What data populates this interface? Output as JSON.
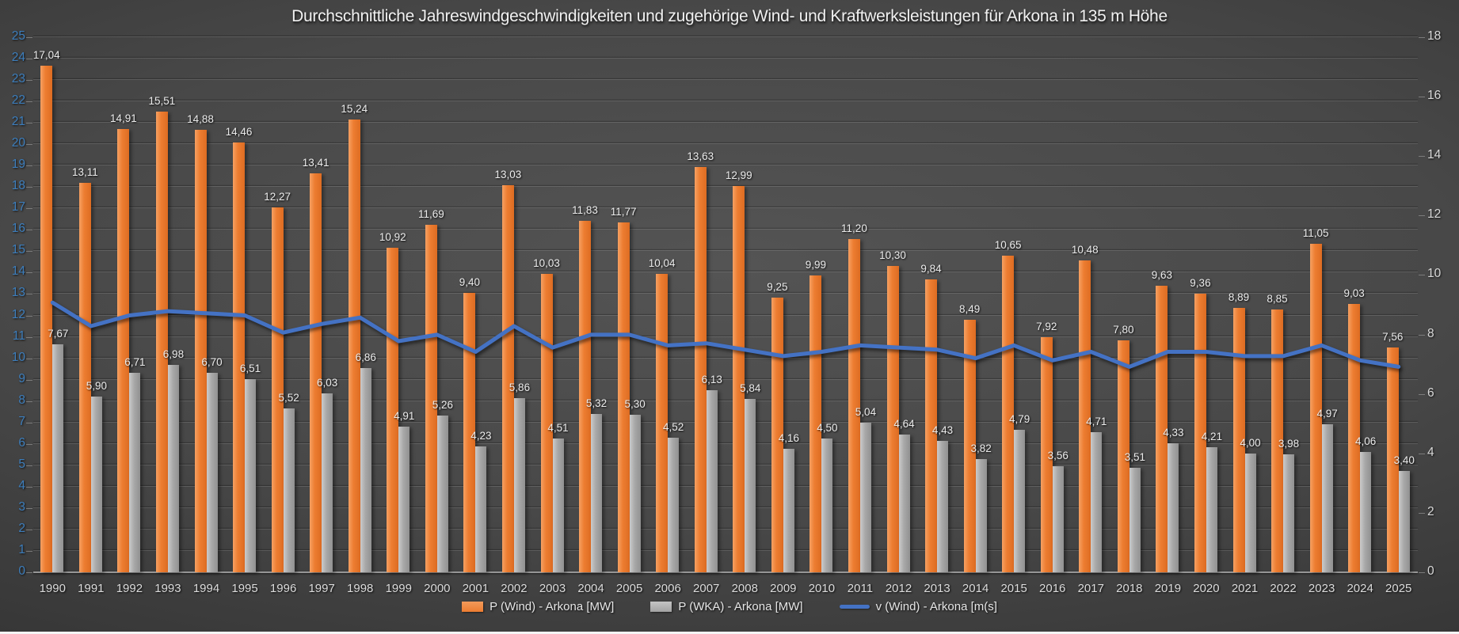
{
  "chart_data": {
    "type": "bar",
    "title": "Durchschnittliche Jahreswindgeschwindigkeiten und zugehörige Wind- und Kraftwerksleistungen für Arkona in 135 m Höhe",
    "categories": [
      "1990",
      "1991",
      "1992",
      "1993",
      "1994",
      "1995",
      "1996",
      "1997",
      "1998",
      "1999",
      "2000",
      "2001",
      "2002",
      "2003",
      "2004",
      "2005",
      "2006",
      "2007",
      "2008",
      "2009",
      "2010",
      "2011",
      "2012",
      "2013",
      "2014",
      "2015",
      "2016",
      "2017",
      "2018",
      "2019",
      "2020",
      "2021",
      "2022",
      "2023",
      "2024",
      "2025"
    ],
    "series": [
      {
        "name": "P (Wind) - Arkona [MW]",
        "kind": "bar",
        "color": "#ED7D31",
        "axis": "right",
        "labels_shown": true,
        "values": [
          17.04,
          13.11,
          14.91,
          15.51,
          14.88,
          14.46,
          12.27,
          13.41,
          15.24,
          10.92,
          11.69,
          9.4,
          13.03,
          10.03,
          11.83,
          11.77,
          10.04,
          13.63,
          12.99,
          9.25,
          9.99,
          11.2,
          10.3,
          9.84,
          8.49,
          10.65,
          7.92,
          10.48,
          7.8,
          9.63,
          9.36,
          8.89,
          8.85,
          11.05,
          9.03,
          7.56
        ]
      },
      {
        "name": "P (WKA) - Arkona [MW]",
        "kind": "bar",
        "color": "#A6A6A6",
        "axis": "right",
        "labels_shown": true,
        "values": [
          7.67,
          5.9,
          6.71,
          6.98,
          6.7,
          6.51,
          5.52,
          6.03,
          6.86,
          4.91,
          5.26,
          4.23,
          5.86,
          4.51,
          5.32,
          5.3,
          4.52,
          6.13,
          5.84,
          4.16,
          4.5,
          5.04,
          4.64,
          4.43,
          3.82,
          4.79,
          3.56,
          4.71,
          3.51,
          4.33,
          4.21,
          4.0,
          3.98,
          4.97,
          4.06,
          3.4
        ]
      },
      {
        "name": "v (Wind) - Arkona [m(s]",
        "kind": "line",
        "color": "#4472C4",
        "axis": "left",
        "labels_shown": false,
        "values": [
          12.6,
          11.5,
          12.0,
          12.2,
          12.1,
          12.0,
          11.2,
          11.6,
          11.9,
          10.8,
          11.1,
          10.3,
          11.5,
          10.5,
          11.1,
          11.1,
          10.6,
          10.7,
          10.4,
          10.1,
          10.3,
          10.6,
          10.5,
          10.4,
          10.0,
          10.6,
          9.9,
          10.3,
          9.6,
          10.3,
          10.3,
          10.1,
          10.1,
          10.6,
          9.9,
          9.6
        ]
      }
    ],
    "axes": {
      "left": {
        "min": 0,
        "max": 25,
        "step": 1,
        "label_color": "#3D7EBC"
      },
      "right": {
        "min": 0,
        "max": 18,
        "step": 2,
        "label_color": "#D9D9D9"
      }
    },
    "grid": true,
    "legend_position": "bottom",
    "number_format": "comma-decimal"
  }
}
